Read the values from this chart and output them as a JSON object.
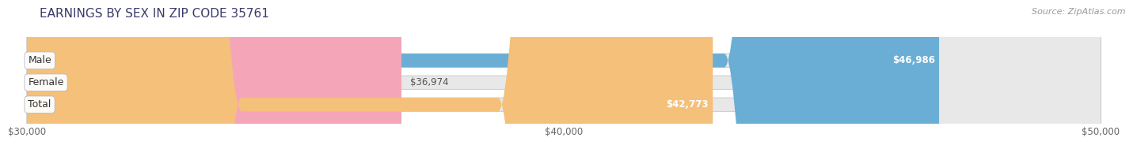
{
  "title": "EARNINGS BY SEX IN ZIP CODE 35761",
  "source": "Source: ZipAtlas.com",
  "categories": [
    "Male",
    "Female",
    "Total"
  ],
  "values": [
    46986,
    36974,
    42773
  ],
  "bar_colors": [
    "#6aaed6",
    "#f4a6b8",
    "#f5c07a"
  ],
  "bar_labels": [
    "$46,986",
    "$36,974",
    "$42,773"
  ],
  "label_inside": [
    true,
    false,
    true
  ],
  "xmin": 30000,
  "xmax": 50000,
  "xticks": [
    30000,
    40000,
    50000
  ],
  "xtick_labels": [
    "$30,000",
    "$40,000",
    "$50,000"
  ],
  "background_color": "#ffffff",
  "bar_bg_color": "#e8e8e8",
  "bar_bg_border_color": "#d0d0d0",
  "title_color": "#3a3a6a",
  "source_color": "#999999",
  "label_color_inside": "#ffffff",
  "label_color_outside": "#555555",
  "bar_height": 0.62,
  "title_fontsize": 11,
  "label_fontsize": 8.5,
  "tick_fontsize": 8.5,
  "category_fontsize": 9.0,
  "grid_color": "#cccccc",
  "bar_gap": 0.38
}
